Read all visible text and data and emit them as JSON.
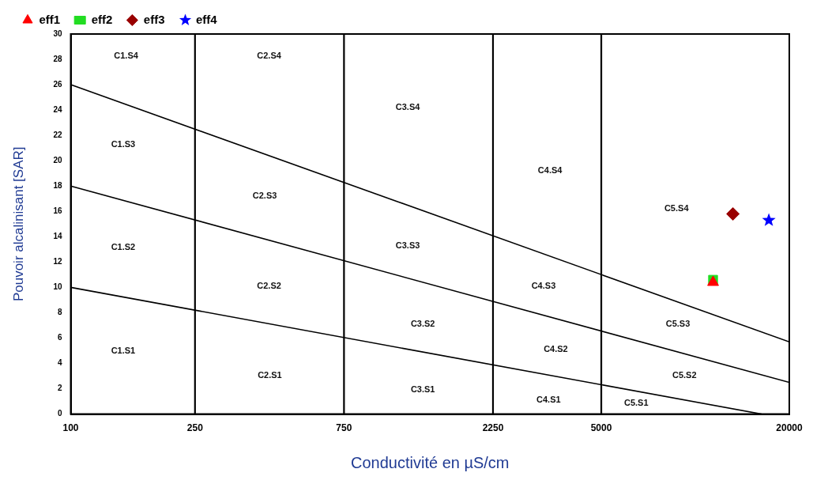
{
  "chart_data": {
    "type": "scatter",
    "xlabel": "Conductivité en µS/cm",
    "ylabel": "Pouvoir alcalinisant [SAR]",
    "log": "x",
    "xlim": [
      100,
      20000
    ],
    "xticks": [
      100,
      250,
      750,
      2250,
      5000,
      20000
    ],
    "ylim": [
      0,
      30
    ],
    "yticks": [
      0,
      2,
      4,
      6,
      8,
      10,
      12,
      14,
      16,
      18,
      20,
      22,
      24,
      26,
      28,
      30
    ],
    "grid": false,
    "legend": "top left",
    "series": [
      {
        "name": "eff1",
        "color": "#ff0000",
        "marker": "triangle",
        "x": [
          11400
        ],
        "values": [
          10.4
        ]
      },
      {
        "name": "eff2",
        "color": "#22dd22",
        "marker": "square",
        "x": [
          11400
        ],
        "values": [
          10.6
        ]
      },
      {
        "name": "eff3",
        "color": "#990000",
        "marker": "diamond",
        "x": [
          13200
        ],
        "values": [
          15.8
        ]
      },
      {
        "name": "eff4",
        "color": "#0000ff",
        "marker": "star",
        "x": [
          17200
        ],
        "values": [
          15.3
        ]
      },
      {
        "type": "line",
        "color": "#000000",
        "marker": "none",
        "x": [
          100,
          20000
        ],
        "values": [
          26,
          5.7
        ]
      },
      {
        "type": "line",
        "color": "#000000",
        "marker": "none",
        "x": [
          100,
          20000
        ],
        "values": [
          18,
          2.5
        ]
      },
      {
        "type": "line",
        "color": "#000000",
        "marker": "none",
        "x": [
          100,
          16300
        ],
        "values": [
          10,
          0
        ]
      }
    ],
    "ref_lines": [
      {
        "axis": "x",
        "value": 250,
        "color": "#000000"
      },
      {
        "axis": "x",
        "value": 750,
        "color": "#000000"
      },
      {
        "axis": "x",
        "value": 2250,
        "color": "#000000"
      },
      {
        "axis": "x",
        "value": 5000,
        "color": "#000000"
      }
    ],
    "annotations": [
      "C1.S4",
      "C2.S4",
      "C3.S4",
      "C4.S4",
      "C5.S4",
      "C1.S3",
      "C2.S3",
      "C3.S3",
      "C4.S3",
      "C5.S3",
      "C1.S2",
      "C2.S2",
      "C3.S2",
      "C4.S2",
      "C5.S2",
      "C1.S1",
      "C2.S1",
      "C3.S1",
      "C4.S1",
      "C5.S1"
    ]
  }
}
